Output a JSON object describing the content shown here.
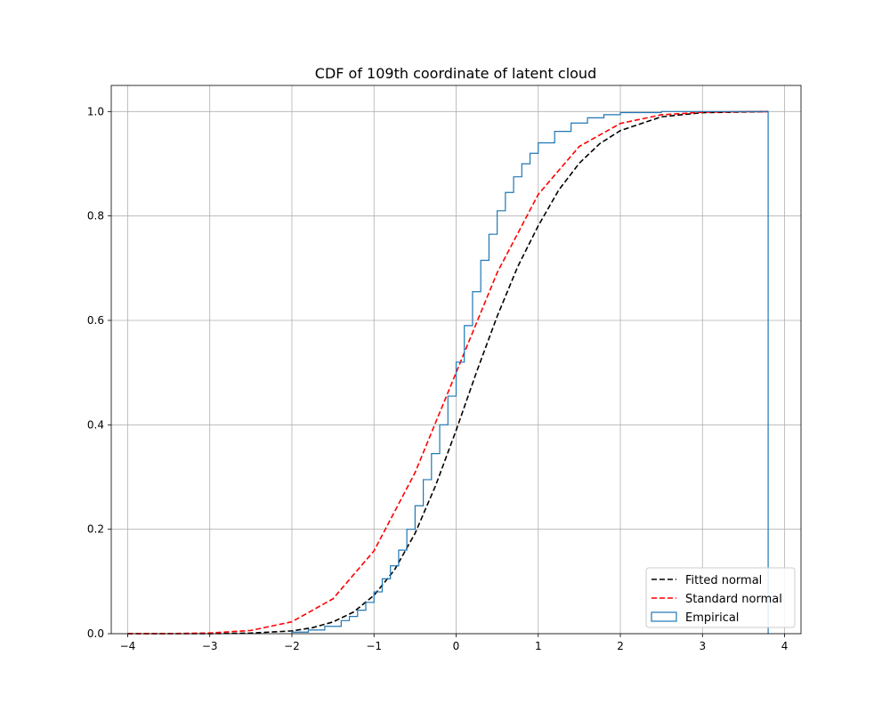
{
  "chart_data": {
    "type": "line",
    "title": "CDF of 109th coordinate of latent cloud",
    "xlabel": "",
    "ylabel": "",
    "xlim": [
      -4.2,
      4.2
    ],
    "ylim": [
      0.0,
      1.05
    ],
    "xticks": [
      -4,
      -3,
      -2,
      -1,
      0,
      1,
      2,
      3,
      4
    ],
    "xtick_labels": [
      "−4",
      "−3",
      "−2",
      "−1",
      "0",
      "1",
      "2",
      "3",
      "4"
    ],
    "yticks": [
      0.0,
      0.2,
      0.4,
      0.6,
      0.8,
      1.0
    ],
    "ytick_labels": [
      "0.0",
      "0.2",
      "0.4",
      "0.6",
      "0.8",
      "1.0"
    ],
    "grid": true,
    "legend_position": "lower-right",
    "series": [
      {
        "name": "Fitted normal",
        "kind": "line",
        "style": "dashed",
        "color": "#000000",
        "x": [
          -4.0,
          -3.0,
          -2.5,
          -2.0,
          -1.75,
          -1.5,
          -1.25,
          -1.0,
          -0.75,
          -0.5,
          -0.25,
          0.0,
          0.25,
          0.5,
          0.75,
          1.0,
          1.25,
          1.5,
          1.75,
          2.0,
          2.5,
          3.0,
          3.8
        ],
        "y": [
          0.0,
          0.0001,
          0.0011,
          0.0053,
          0.0114,
          0.0225,
          0.0413,
          0.0735,
          0.1222,
          0.1922,
          0.2835,
          0.3894,
          0.5017,
          0.6079,
          0.7029,
          0.7812,
          0.8497,
          0.9011,
          0.9386,
          0.9635,
          0.9899,
          0.9979,
          1.0
        ]
      },
      {
        "name": "Standard normal",
        "kind": "line",
        "style": "dashed",
        "color": "#ff0000",
        "x": [
          -4.0,
          -3.5,
          -3.0,
          -2.5,
          -2.0,
          -1.5,
          -1.0,
          -0.5,
          0.0,
          0.5,
          1.0,
          1.5,
          2.0,
          2.5,
          3.0,
          3.5,
          3.8
        ],
        "y": [
          0.0,
          0.0002,
          0.0013,
          0.0062,
          0.0228,
          0.0668,
          0.1587,
          0.3085,
          0.5,
          0.6915,
          0.8413,
          0.9332,
          0.9772,
          0.9938,
          0.9987,
          0.9998,
          0.9999
        ]
      },
      {
        "name": "Empirical",
        "kind": "step",
        "color": "#1f77b4",
        "x": [
          -2.0,
          -1.8,
          -1.6,
          -1.4,
          -1.3,
          -1.2,
          -1.1,
          -1.0,
          -0.9,
          -0.8,
          -0.7,
          -0.6,
          -0.5,
          -0.4,
          -0.3,
          -0.2,
          -0.1,
          0.0,
          0.1,
          0.2,
          0.3,
          0.4,
          0.5,
          0.6,
          0.7,
          0.8,
          0.9,
          1.0,
          1.2,
          1.4,
          1.6,
          1.8,
          2.0,
          2.5,
          3.8
        ],
        "y": [
          0.003,
          0.007,
          0.014,
          0.025,
          0.033,
          0.045,
          0.06,
          0.08,
          0.105,
          0.13,
          0.16,
          0.2,
          0.245,
          0.295,
          0.345,
          0.4,
          0.455,
          0.52,
          0.59,
          0.655,
          0.715,
          0.765,
          0.81,
          0.845,
          0.875,
          0.9,
          0.92,
          0.94,
          0.962,
          0.978,
          0.988,
          0.994,
          0.998,
          1.0,
          1.0
        ]
      }
    ]
  }
}
